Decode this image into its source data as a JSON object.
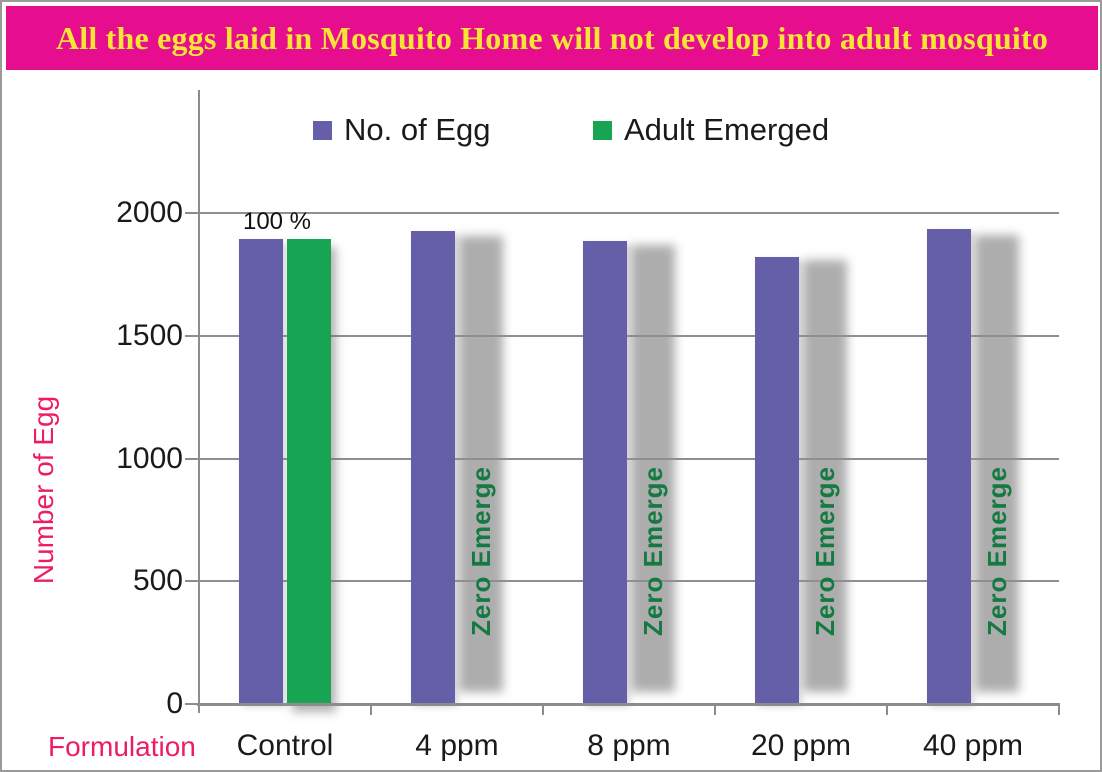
{
  "banner": {
    "text": "All the eggs laid in Mosquito Home will not develop into adult mosquito",
    "bg_color": "#E60D8E",
    "text_color": "#F7E535"
  },
  "axis_label_color": "#EE1D62",
  "chart_data": {
    "type": "bar",
    "categories": [
      "Control",
      "4 ppm",
      "8 ppm",
      "20 ppm",
      "40 ppm"
    ],
    "series": [
      {
        "name": "No. of Egg",
        "color": "#655FA9",
        "values": [
          1895,
          1925,
          1885,
          1820,
          1935
        ]
      },
      {
        "name": "Adult Emerged",
        "color": "#17A553",
        "values": [
          1895,
          0,
          0,
          0,
          0
        ]
      }
    ],
    "ghost_bars": {
      "note": "blurred gray placeholder bars where no adults emerged",
      "color": "#ADADAD",
      "label": "Zero Emerge",
      "label_color": "#157A42",
      "heights": [
        0,
        1905,
        1870,
        1810,
        1910
      ]
    },
    "annotations": [
      {
        "text": "100 %",
        "category": "Control"
      }
    ],
    "xlabel": "Formulation",
    "ylabel": "Number of Egg",
    "ylim": [
      0,
      2000
    ],
    "yticks": [
      0,
      500,
      1000,
      1500,
      2000
    ],
    "grid": "horizontal",
    "legend_position": "top-center",
    "gridline_color": "#8f8f8f"
  }
}
